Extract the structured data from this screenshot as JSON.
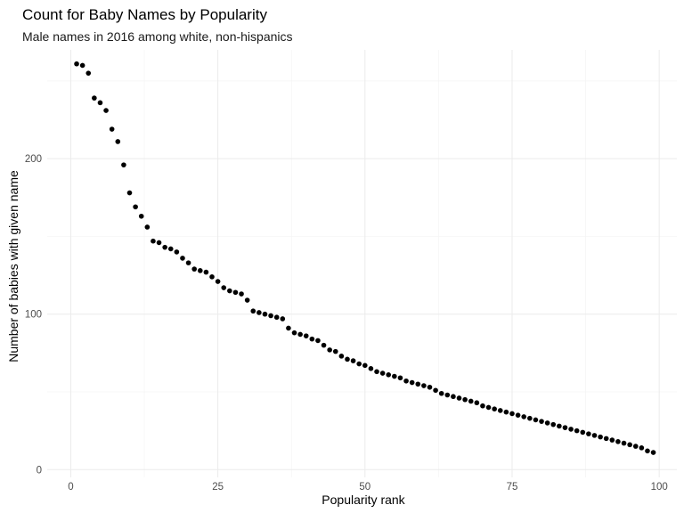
{
  "chart_data": {
    "type": "scatter",
    "title": "Count for Baby Names by Popularity",
    "subtitle": "Male names in 2016 among white, non-hispanics",
    "xlabel": "Popularity rank",
    "ylabel": "Number of babies with given name",
    "xlim": [
      -4,
      103
    ],
    "ylim": [
      -5,
      270
    ],
    "x_ticks": [
      0,
      25,
      50,
      75,
      100
    ],
    "y_ticks": [
      0,
      100,
      200
    ],
    "grid": true,
    "legend": "none",
    "point_color": "#000000",
    "points": [
      {
        "x": 1,
        "y": 261
      },
      {
        "x": 2,
        "y": 260
      },
      {
        "x": 3,
        "y": 255
      },
      {
        "x": 4,
        "y": 239
      },
      {
        "x": 5,
        "y": 236
      },
      {
        "x": 6,
        "y": 231
      },
      {
        "x": 7,
        "y": 219
      },
      {
        "x": 8,
        "y": 211
      },
      {
        "x": 9,
        "y": 196
      },
      {
        "x": 10,
        "y": 178
      },
      {
        "x": 11,
        "y": 169
      },
      {
        "x": 12,
        "y": 163
      },
      {
        "x": 13,
        "y": 156
      },
      {
        "x": 14,
        "y": 147
      },
      {
        "x": 15,
        "y": 146
      },
      {
        "x": 16,
        "y": 143
      },
      {
        "x": 17,
        "y": 142
      },
      {
        "x": 18,
        "y": 140
      },
      {
        "x": 19,
        "y": 136
      },
      {
        "x": 20,
        "y": 133
      },
      {
        "x": 21,
        "y": 129
      },
      {
        "x": 22,
        "y": 128
      },
      {
        "x": 23,
        "y": 127
      },
      {
        "x": 24,
        "y": 124
      },
      {
        "x": 25,
        "y": 121
      },
      {
        "x": 26,
        "y": 117
      },
      {
        "x": 27,
        "y": 115
      },
      {
        "x": 28,
        "y": 114
      },
      {
        "x": 29,
        "y": 113
      },
      {
        "x": 30,
        "y": 109
      },
      {
        "x": 31,
        "y": 102
      },
      {
        "x": 32,
        "y": 101
      },
      {
        "x": 33,
        "y": 100
      },
      {
        "x": 34,
        "y": 99
      },
      {
        "x": 35,
        "y": 98
      },
      {
        "x": 36,
        "y": 97
      },
      {
        "x": 37,
        "y": 91
      },
      {
        "x": 38,
        "y": 88
      },
      {
        "x": 39,
        "y": 87
      },
      {
        "x": 40,
        "y": 86
      },
      {
        "x": 41,
        "y": 84
      },
      {
        "x": 42,
        "y": 83
      },
      {
        "x": 43,
        "y": 80
      },
      {
        "x": 44,
        "y": 77
      },
      {
        "x": 45,
        "y": 76
      },
      {
        "x": 46,
        "y": 73
      },
      {
        "x": 47,
        "y": 71
      },
      {
        "x": 48,
        "y": 70
      },
      {
        "x": 49,
        "y": 68
      },
      {
        "x": 50,
        "y": 67
      },
      {
        "x": 51,
        "y": 65
      },
      {
        "x": 52,
        "y": 63
      },
      {
        "x": 53,
        "y": 62
      },
      {
        "x": 54,
        "y": 61
      },
      {
        "x": 55,
        "y": 60
      },
      {
        "x": 56,
        "y": 59
      },
      {
        "x": 57,
        "y": 57
      },
      {
        "x": 58,
        "y": 56
      },
      {
        "x": 59,
        "y": 55
      },
      {
        "x": 60,
        "y": 54
      },
      {
        "x": 61,
        "y": 53
      },
      {
        "x": 62,
        "y": 51
      },
      {
        "x": 63,
        "y": 49
      },
      {
        "x": 64,
        "y": 48
      },
      {
        "x": 65,
        "y": 47
      },
      {
        "x": 66,
        "y": 46
      },
      {
        "x": 67,
        "y": 45
      },
      {
        "x": 68,
        "y": 44
      },
      {
        "x": 69,
        "y": 43
      },
      {
        "x": 70,
        "y": 41
      },
      {
        "x": 71,
        "y": 40
      },
      {
        "x": 72,
        "y": 39
      },
      {
        "x": 73,
        "y": 38
      },
      {
        "x": 74,
        "y": 37
      },
      {
        "x": 75,
        "y": 36
      },
      {
        "x": 76,
        "y": 35
      },
      {
        "x": 77,
        "y": 34
      },
      {
        "x": 78,
        "y": 33
      },
      {
        "x": 79,
        "y": 32
      },
      {
        "x": 80,
        "y": 31
      },
      {
        "x": 81,
        "y": 30
      },
      {
        "x": 82,
        "y": 29
      },
      {
        "x": 83,
        "y": 28
      },
      {
        "x": 84,
        "y": 27
      },
      {
        "x": 85,
        "y": 26
      },
      {
        "x": 86,
        "y": 25
      },
      {
        "x": 87,
        "y": 24
      },
      {
        "x": 88,
        "y": 23
      },
      {
        "x": 89,
        "y": 22
      },
      {
        "x": 90,
        "y": 21
      },
      {
        "x": 91,
        "y": 20
      },
      {
        "x": 92,
        "y": 19
      },
      {
        "x": 93,
        "y": 18
      },
      {
        "x": 94,
        "y": 17
      },
      {
        "x": 95,
        "y": 16
      },
      {
        "x": 96,
        "y": 15
      },
      {
        "x": 97,
        "y": 14
      },
      {
        "x": 98,
        "y": 12
      },
      {
        "x": 99,
        "y": 11
      }
    ]
  }
}
